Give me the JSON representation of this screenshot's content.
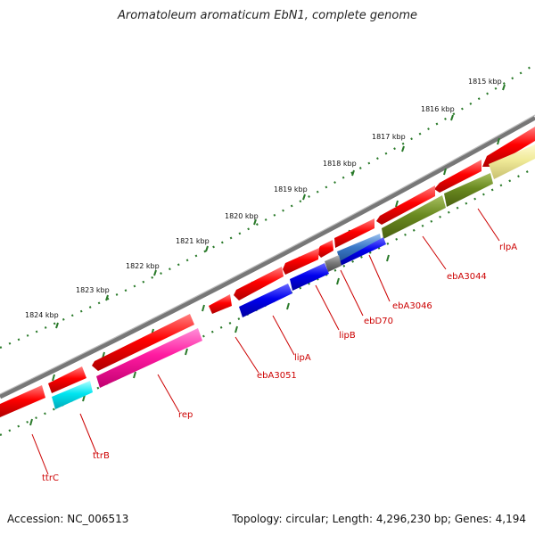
{
  "title": "Aromatoleum aromaticum EbN1, complete genome",
  "footer": {
    "accession": "Accession: NC_006513",
    "summary": "Topology: circular; Length: 4,296,230 bp; Genes: 4,194"
  },
  "ticks": [
    {
      "label": "1815 kbp"
    },
    {
      "label": "1816 kbp"
    },
    {
      "label": "1817 kbp"
    },
    {
      "label": "1818 kbp"
    },
    {
      "label": "1819 kbp"
    },
    {
      "label": "1820 kbp"
    },
    {
      "label": "1821 kbp"
    },
    {
      "label": "1822 kbp"
    },
    {
      "label": "1823 kbp"
    },
    {
      "label": "1824 kbp"
    }
  ],
  "gene_labels": [
    {
      "name": "rlpA"
    },
    {
      "name": "ebA3044"
    },
    {
      "name": "ebA3046"
    },
    {
      "name": "ebD70"
    },
    {
      "name": "lipB"
    },
    {
      "name": "lipA"
    },
    {
      "name": "ebA3051"
    },
    {
      "name": "rep"
    },
    {
      "name": "ttrB"
    },
    {
      "name": "ttrC"
    }
  ],
  "colors": {
    "backbone": "#777777",
    "cds": "#ee1111",
    "tick": "#2a7a2a",
    "label": "#cc0000"
  }
}
